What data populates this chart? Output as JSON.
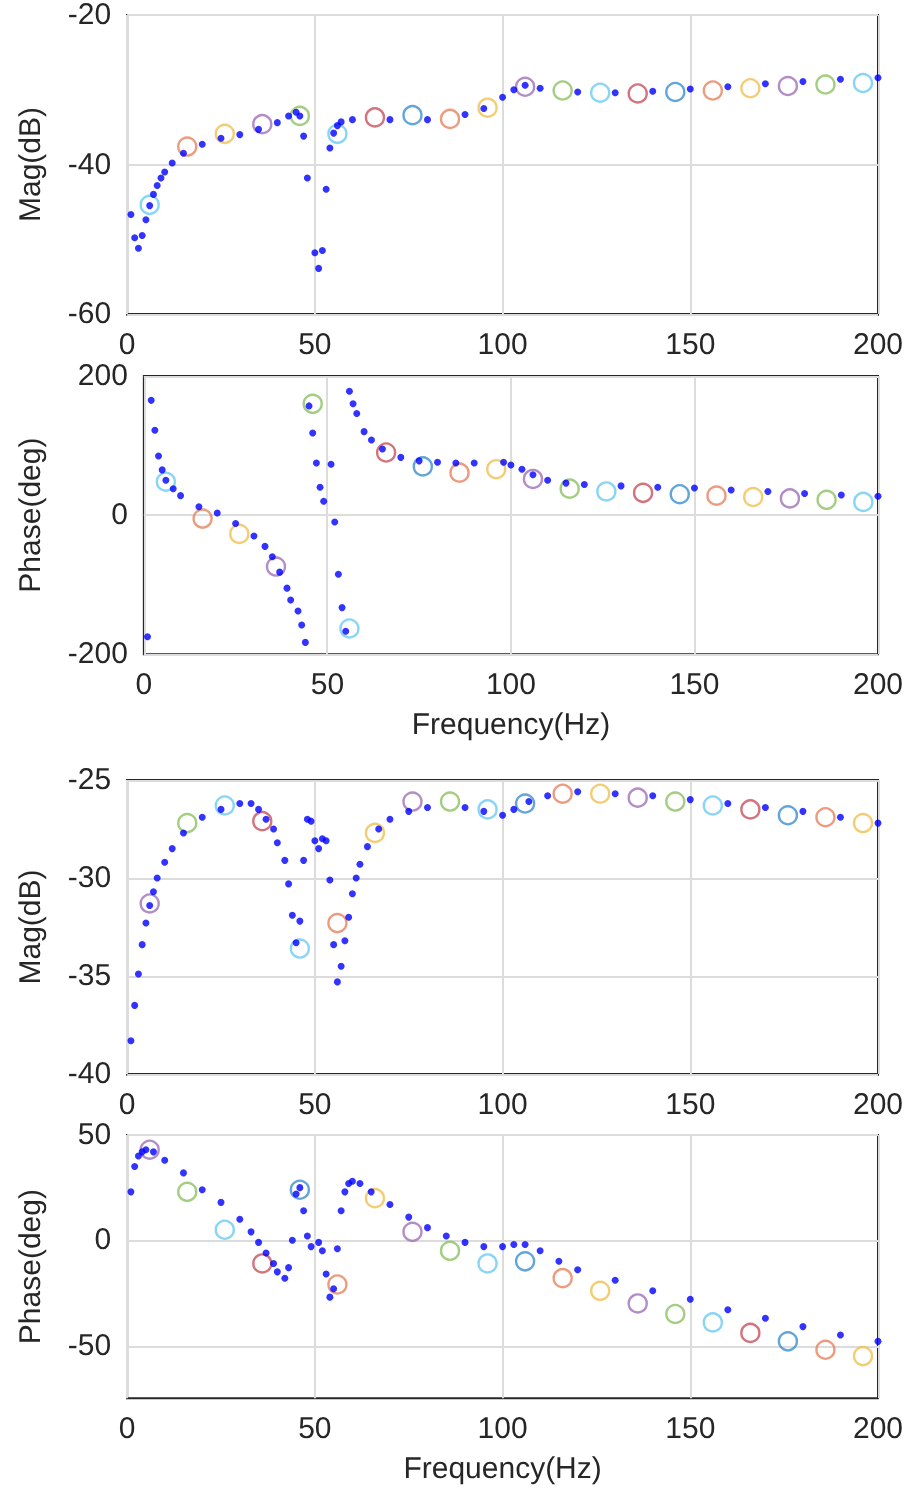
{
  "chart_data": [
    {
      "type": "scatter",
      "ylabel": "Mag(dB)",
      "xlim": [
        0,
        200
      ],
      "xticks": [
        0,
        50,
        100,
        150,
        200
      ],
      "ylim": [
        -60,
        -20
      ],
      "yticks": [
        -60,
        -40,
        -20
      ],
      "grid": true,
      "marker": "circle",
      "series": [
        {
          "color": "#0000ff",
          "x": [
            1,
            2,
            3,
            4,
            5,
            6,
            7,
            8,
            9,
            10,
            12,
            15,
            20,
            25,
            30,
            35,
            40,
            43,
            45,
            46,
            47,
            48,
            50,
            51,
            52,
            53,
            54,
            55,
            56,
            57,
            60,
            70,
            80,
            90,
            95,
            100,
            103,
            106,
            110,
            120,
            130,
            140,
            150,
            160,
            170,
            180,
            190,
            200
          ],
          "values": [
            -46.7,
            -49.8,
            -51.2,
            -49.5,
            -47.4,
            -45.5,
            -44,
            -42.8,
            -41.8,
            -41,
            -39.8,
            -38.5,
            -37.3,
            -36.5,
            -36,
            -35.3,
            -34.4,
            -33.5,
            -33,
            -33.5,
            -36.2,
            -41.8,
            -51.8,
            -53.9,
            -51.5,
            -43.3,
            -37.8,
            -35.8,
            -34.8,
            -34.3,
            -34,
            -34,
            -34,
            -33.3,
            -32.5,
            -31,
            -30,
            -29.4,
            -29.8,
            -30.3,
            -30.4,
            -30.2,
            -29.9,
            -29.6,
            -29.2,
            -28.9,
            -28.6,
            -28.4
          ]
        },
        {
          "colors": [
            "#6ccbf2",
            "#e8825f",
            "#f0c050",
            "#a070b8",
            "#8cc060",
            "#6ccbf2",
            "#c8505c",
            "#3c8fd0",
            "#e8825f",
            "#f0c050",
            "#a070b8",
            "#8cc060",
            "#6ccbf2",
            "#c8505c",
            "#3c8fd0",
            "#e8825f",
            "#f0c050",
            "#a070b8",
            "#8cc060",
            "#6ccbf2"
          ],
          "x": [
            6,
            16,
            26,
            36,
            46,
            56,
            66,
            76,
            86,
            96,
            106,
            116,
            126,
            136,
            146,
            156,
            166,
            176,
            186,
            196
          ],
          "values": [
            -45.4,
            -37.6,
            -35.9,
            -34.6,
            -33.5,
            -35.9,
            -33.7,
            -33.4,
            -33.9,
            -32.4,
            -29.6,
            -30.1,
            -30.4,
            -30.5,
            -30.3,
            -30.1,
            -29.8,
            -29.5,
            -29.3,
            -29.1
          ]
        }
      ]
    },
    {
      "type": "scatter",
      "ylabel": "Phase(deg)",
      "xlabel": "Frequency(Hz)",
      "xlim": [
        0,
        200
      ],
      "xticks": [
        0,
        50,
        100,
        150,
        200
      ],
      "ylim": [
        -200,
        200
      ],
      "yticks": [
        -200,
        0,
        200
      ],
      "grid": true,
      "marker": "circle",
      "series": [
        {
          "color": "#0000ff",
          "x": [
            1,
            2,
            3,
            4,
            5,
            6,
            8,
            10,
            15,
            20,
            25,
            30,
            33,
            35,
            37,
            39,
            40,
            42,
            43,
            44,
            45,
            46,
            47,
            48,
            49,
            51,
            52,
            53,
            54,
            55,
            56,
            57,
            58,
            60,
            62,
            65,
            70,
            75,
            80,
            85,
            90,
            98,
            100,
            103,
            106,
            110,
            115,
            120,
            130,
            140,
            150,
            160,
            170,
            180,
            190,
            200
          ],
          "values": [
            -175,
            165,
            122,
            85,
            65,
            50,
            38,
            28,
            12,
            3,
            -12,
            -30,
            -45,
            -60,
            -82,
            -105,
            -122,
            -138,
            -158,
            -183,
            157,
            118,
            75,
            40,
            20,
            73,
            -10,
            -85,
            -133,
            -167,
            178,
            160,
            146,
            120,
            108,
            95,
            83,
            78,
            76,
            75,
            75,
            76,
            72,
            66,
            58,
            50,
            46,
            44,
            42,
            40,
            39,
            36,
            34,
            31,
            29,
            27
          ]
        },
        {
          "colors": [
            "#6ccbf2",
            "#e8825f",
            "#f0c050",
            "#a070b8",
            "#8cc060",
            "#6ccbf2",
            "#c8505c",
            "#3c8fd0",
            "#e8825f",
            "#f0c050",
            "#a070b8",
            "#8cc060",
            "#6ccbf2",
            "#c8505c",
            "#3c8fd0",
            "#e8825f",
            "#f0c050",
            "#a070b8",
            "#8cc060",
            "#6ccbf2"
          ],
          "x": [
            6,
            16,
            26,
            36,
            46,
            56,
            66,
            76,
            86,
            96,
            106,
            116,
            126,
            136,
            146,
            156,
            166,
            176,
            186,
            196
          ],
          "values": [
            48,
            -5,
            -27,
            -74,
            160,
            -163,
            90,
            70,
            61,
            66,
            52,
            38,
            34,
            32,
            30,
            28,
            26,
            24,
            22,
            19
          ]
        }
      ]
    },
    {
      "type": "scatter",
      "ylabel": "Mag(dB)",
      "xlim": [
        0,
        200
      ],
      "xticks": [
        0,
        50,
        100,
        150,
        200
      ],
      "ylim": [
        -40,
        -25
      ],
      "yticks": [
        -40,
        -35,
        -30,
        -25
      ],
      "grid": true,
      "marker": "circle",
      "series": [
        {
          "color": "#0000ff",
          "x": [
            1,
            2,
            3,
            4,
            5,
            6,
            7,
            8,
            10,
            12,
            15,
            20,
            25,
            30,
            33,
            35,
            37,
            39,
            40,
            42,
            43,
            44,
            45,
            46,
            47,
            48,
            49,
            50,
            51,
            52,
            53,
            54,
            55,
            56,
            57,
            58,
            59,
            60,
            61,
            62,
            64,
            67,
            70,
            75,
            80,
            90,
            95,
            100,
            103,
            107,
            112,
            120,
            130,
            140,
            150,
            160,
            170,
            180,
            190,
            200
          ],
          "values": [
            -38.3,
            -36.5,
            -34.9,
            -33.4,
            -32.3,
            -31.4,
            -30.7,
            -30,
            -29.2,
            -28.5,
            -27.7,
            -26.9,
            -26.5,
            -26.2,
            -26.2,
            -26.5,
            -27,
            -27.5,
            -28.2,
            -29.1,
            -30.3,
            -31.9,
            -33.3,
            -32.2,
            -29.1,
            -27,
            -27.1,
            -28.1,
            -28.5,
            -28,
            -28.1,
            -30.1,
            -33.4,
            -35.3,
            -34.5,
            -33.2,
            -32,
            -30.8,
            -30,
            -29.3,
            -28.4,
            -27.5,
            -27,
            -26.6,
            -26.4,
            -26.4,
            -26.6,
            -26.8,
            -26.5,
            -26.1,
            -25.8,
            -25.6,
            -25.7,
            -25.8,
            -26,
            -26.2,
            -26.4,
            -26.6,
            -26.9,
            -27.2
          ]
        },
        {
          "colors": [
            "#a070b8",
            "#8cc060",
            "#6ccbf2",
            "#c8505c",
            "#6ccbf2",
            "#e8825f",
            "#f0c050",
            "#a070b8",
            "#8cc060",
            "#6ccbf2",
            "#3c8fd0",
            "#e8825f",
            "#f0c050",
            "#a070b8",
            "#8cc060",
            "#6ccbf2",
            "#c8505c",
            "#3c8fd0",
            "#e8825f",
            "#f0c050"
          ],
          "x": [
            6,
            16,
            26,
            36,
            46,
            56,
            66,
            76,
            86,
            96,
            106,
            116,
            126,
            136,
            146,
            156,
            166,
            176,
            186,
            196
          ],
          "values": [
            -31.3,
            -27.2,
            -26.3,
            -27.1,
            -33.6,
            -32.3,
            -27.7,
            -26.1,
            -26.1,
            -26.5,
            -26.2,
            -25.7,
            -25.7,
            -25.9,
            -26.1,
            -26.3,
            -26.5,
            -26.8,
            -26.9,
            -27.2
          ]
        }
      ]
    },
    {
      "type": "scatter",
      "ylabel": "Phase(deg)",
      "xlabel": "Frequency(Hz)",
      "xlim": [
        0,
        200
      ],
      "xticks": [
        0,
        50,
        100,
        150,
        200
      ],
      "ylim": [
        -75,
        50
      ],
      "yticks": [
        -50,
        0,
        50
      ],
      "grid": true,
      "marker": "circle",
      "series": [
        {
          "color": "#0000ff",
          "x": [
            1,
            2,
            3,
            4,
            5,
            7,
            10,
            15,
            20,
            25,
            30,
            33,
            35,
            37,
            39,
            40,
            42,
            43,
            44,
            45,
            46,
            47,
            48,
            49,
            51,
            52,
            53,
            54,
            55,
            56,
            57,
            58,
            59,
            60,
            62,
            65,
            70,
            75,
            80,
            85,
            90,
            95,
            100,
            103,
            106,
            110,
            115,
            120,
            130,
            140,
            150,
            160,
            170,
            180,
            190,
            200
          ],
          "values": [
            23,
            35,
            40,
            42,
            43,
            42,
            38,
            32,
            24,
            18,
            10,
            4,
            -1,
            -6,
            -11,
            -15,
            -18,
            -13,
            0,
            22,
            25,
            14,
            2,
            -3,
            -1,
            -5,
            -16,
            -27,
            -23,
            -4,
            14,
            23,
            27,
            28,
            27,
            23,
            17,
            11,
            6,
            2,
            -1,
            -3,
            -3,
            -2,
            -2,
            -5,
            -10,
            -14,
            -19,
            -24,
            -28,
            -33,
            -37,
            -41,
            -45,
            -48
          ]
        },
        {
          "colors": [
            "#a070b8",
            "#8cc060",
            "#6ccbf2",
            "#c8505c",
            "#3c8fd0",
            "#e8825f",
            "#f0c050",
            "#a070b8",
            "#8cc060",
            "#6ccbf2",
            "#3c8fd0",
            "#e8825f",
            "#f0c050",
            "#a070b8",
            "#8cc060",
            "#6ccbf2",
            "#c8505c",
            "#3c8fd0",
            "#e8825f",
            "#f0c050"
          ],
          "x": [
            6,
            16,
            26,
            36,
            46,
            56,
            66,
            76,
            86,
            96,
            106,
            116,
            126,
            136,
            146,
            156,
            166,
            176,
            186,
            196
          ],
          "values": [
            43,
            23,
            5,
            -11,
            24,
            -21,
            20,
            4,
            -5,
            -11,
            -10,
            -18,
            -24,
            -30,
            -35,
            -39,
            -44,
            -48,
            -52,
            -55
          ]
        }
      ]
    }
  ]
}
